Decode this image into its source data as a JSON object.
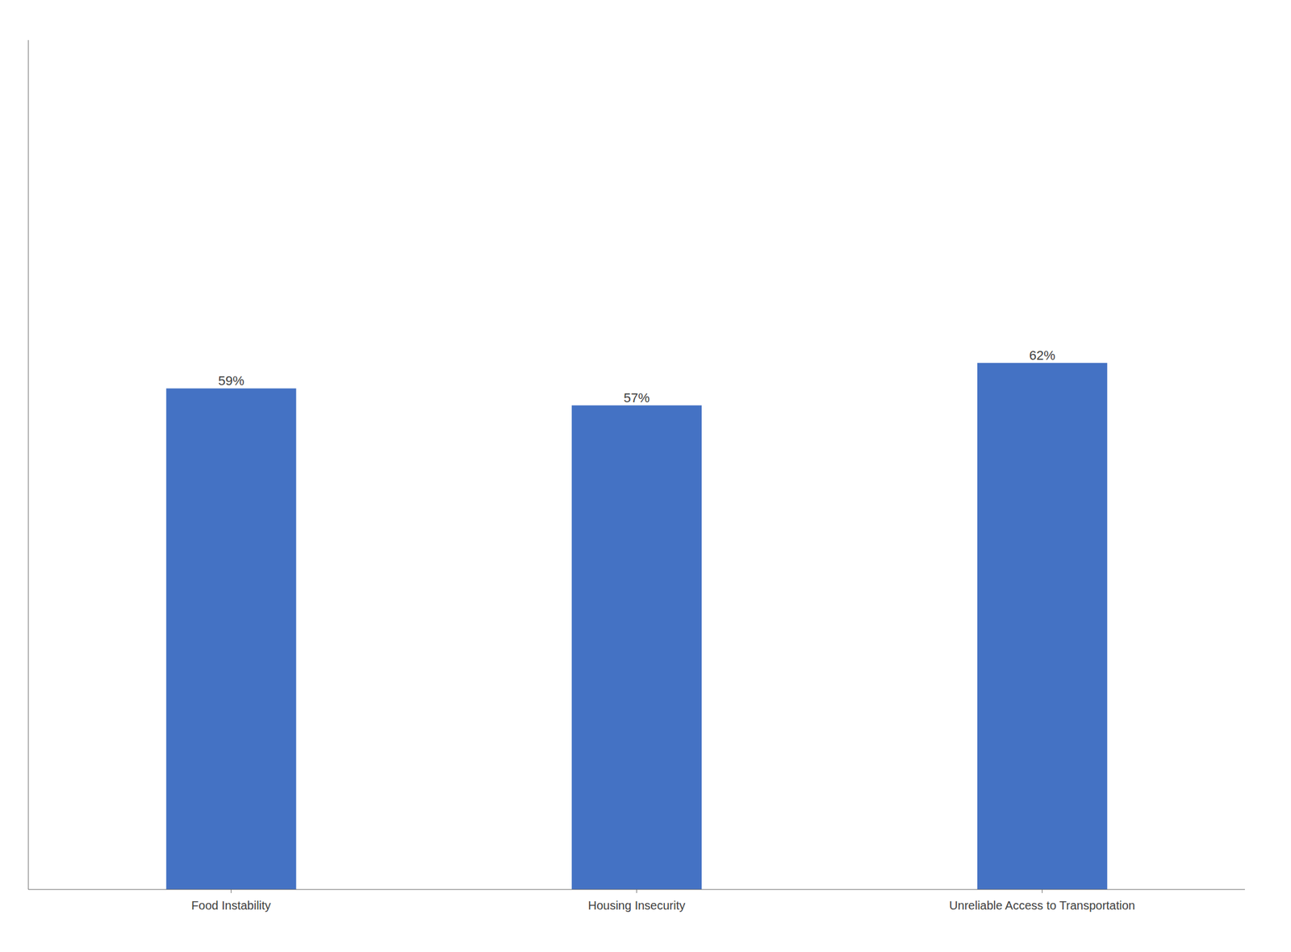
{
  "chart_data": {
    "type": "bar",
    "categories": [
      "Food Instability",
      "Housing Insecurity",
      "Unreliable Access to Transportation"
    ],
    "values": [
      59,
      57,
      62
    ],
    "value_labels": [
      "59%",
      "57%",
      "62%"
    ],
    "data_labels": true,
    "color": "#4472C4",
    "ylim": [
      0,
      100
    ],
    "yticks": [],
    "tick_labels": "x",
    "grid": false
  }
}
